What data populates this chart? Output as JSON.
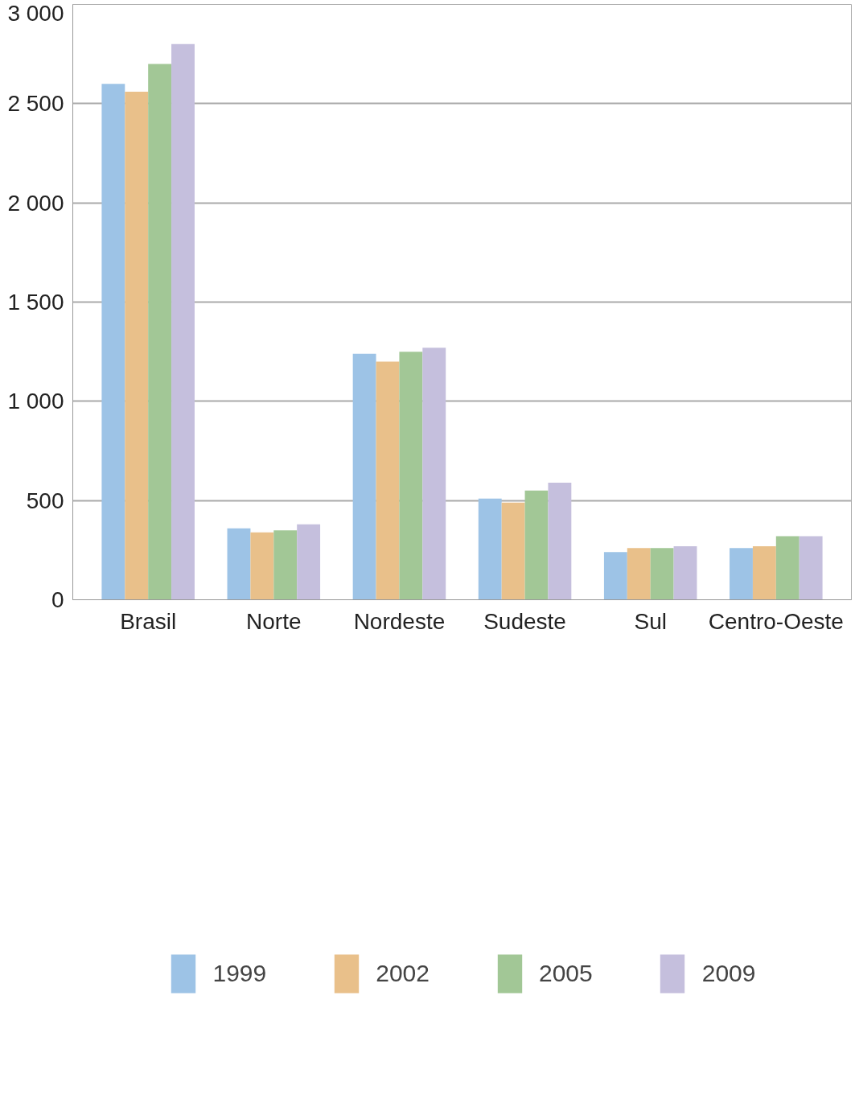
{
  "chart_data": {
    "type": "bar",
    "categories": [
      "Brasil",
      "Norte",
      "Nordeste",
      "Sudeste",
      "Sul",
      "Centro-Oeste"
    ],
    "series": [
      {
        "name": "1999",
        "color": "#9dc3e6",
        "values": [
          2600,
          360,
          1240,
          510,
          240,
          260
        ]
      },
      {
        "name": "2002",
        "color": "#e9c08a",
        "values": [
          2560,
          340,
          1200,
          490,
          260,
          270
        ]
      },
      {
        "name": "2005",
        "color": "#a2c796",
        "values": [
          2700,
          350,
          1250,
          550,
          260,
          320
        ]
      },
      {
        "name": "2009",
        "color": "#c5bfdd",
        "values": [
          2800,
          380,
          1270,
          590,
          270,
          320
        ]
      }
    ],
    "ylim": [
      0,
      3000
    ],
    "yticks": [
      0,
      {
        "value": 500,
        "label": "500"
      },
      {
        "value": 1000,
        "label": "1 000"
      },
      {
        "value": 1500,
        "label": "1 500"
      },
      {
        "value": 2000,
        "label": "2 000"
      },
      {
        "value": 2500,
        "label": "2 500"
      },
      {
        "value": 3000,
        "label": "3 000"
      }
    ],
    "grid": "y",
    "legend": "bottom"
  }
}
